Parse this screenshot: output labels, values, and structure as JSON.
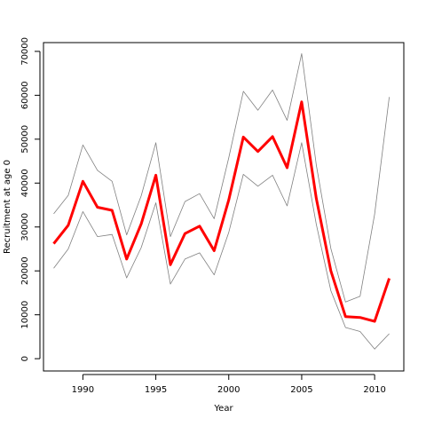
{
  "chart_data": {
    "type": "line",
    "title": "",
    "xlabel": "Year",
    "ylabel": "Recruitment at age 0",
    "xlim": [
      1987.3,
      2012.0
    ],
    "ylim": [
      -2800,
      72000
    ],
    "xticks": [
      1990,
      1995,
      2000,
      2005,
      2010
    ],
    "yticks": [
      0,
      10000,
      20000,
      30000,
      40000,
      50000,
      60000,
      70000
    ],
    "grid": false,
    "legend": "none",
    "x": [
      1988,
      1989,
      1990,
      1991,
      1992,
      1993,
      1994,
      1995,
      1996,
      1997,
      1998,
      1999,
      2000,
      2001,
      2002,
      2003,
      2004,
      2005,
      2006,
      2007,
      2008,
      2009,
      2010,
      2011
    ],
    "series": [
      {
        "color": "#ff0000",
        "values": [
          26200,
          30400,
          40400,
          34500,
          33800,
          22700,
          30700,
          41800,
          21400,
          28500,
          30200,
          24600,
          36200,
          50500,
          47200,
          50600,
          43500,
          58500,
          36500,
          20000,
          9600,
          9400,
          8500,
          18300
        ]
      },
      {
        "color": "#808080",
        "values": [
          33000,
          37200,
          48700,
          42900,
          40400,
          28200,
          37100,
          49200,
          27800,
          35800,
          37600,
          31900,
          45800,
          60900,
          56600,
          61200,
          54300,
          69500,
          44100,
          25100,
          12900,
          14200,
          32900,
          59600
        ]
      },
      {
        "color": "#808080",
        "values": [
          20600,
          25000,
          33500,
          27800,
          28300,
          18400,
          25300,
          35500,
          17000,
          22700,
          24100,
          19100,
          28800,
          42000,
          39300,
          41800,
          34800,
          49200,
          30600,
          15500,
          7100,
          6200,
          2200,
          5700
        ]
      }
    ]
  }
}
